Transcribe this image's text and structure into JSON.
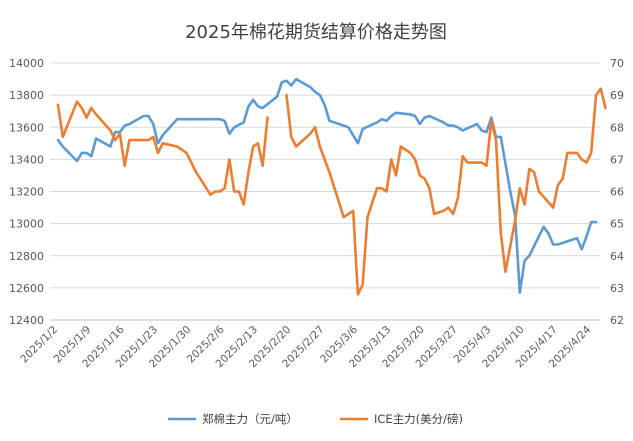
{
  "chart_data": {
    "type": "line",
    "title": "2025年棉花期货结算价格走势图",
    "xlabel": "",
    "ylabel": "",
    "y_left_range": [
      12400,
      14000
    ],
    "y_left_ticks": [
      "14000",
      "13800",
      "13600",
      "13400",
      "13200",
      "13000",
      "12800",
      "12600",
      "12400"
    ],
    "y_right_range": [
      62,
      70
    ],
    "y_right_ticks": [
      "70",
      "69",
      "68",
      "67",
      "66",
      "65",
      "64",
      "63",
      "62"
    ],
    "x_range_days": [
      "2025/1/2",
      "2025/4/25"
    ],
    "x_ticks": [
      "2025/1/2",
      "2025/1/9",
      "2025/1/16",
      "2025/1/23",
      "2025/1/30",
      "2025/2/6",
      "2025/2/13",
      "2025/2/20",
      "2025/2/27",
      "2025/3/6",
      "2025/3/13",
      "2025/3/20",
      "2025/3/27",
      "2025/4/3",
      "2025/4/10",
      "2025/4/17",
      "2025/4/24"
    ],
    "legend_position": "bottom",
    "gridlines": true,
    "series": [
      {
        "name": "郑棉主力（元/吨）",
        "axis": "left",
        "color": "#5b9bd5",
        "points": [
          [
            "2025/1/2",
            13520
          ],
          [
            "2025/1/3",
            13480
          ],
          [
            "2025/1/6",
            13390
          ],
          [
            "2025/1/7",
            13440
          ],
          [
            "2025/1/8",
            13440
          ],
          [
            "2025/1/9",
            13420
          ],
          [
            "2025/1/10",
            13530
          ],
          [
            "2025/1/13",
            13480
          ],
          [
            "2025/1/14",
            13570
          ],
          [
            "2025/1/15",
            13570
          ],
          [
            "2025/1/16",
            13610
          ],
          [
            "2025/1/17",
            13620
          ],
          [
            "2025/1/20",
            13670
          ],
          [
            "2025/1/21",
            13670
          ],
          [
            "2025/1/22",
            13620
          ],
          [
            "2025/1/23",
            13500
          ],
          [
            "2025/1/24",
            13550
          ],
          [
            "2025/1/27",
            13650
          ],
          [
            "2025/1/28",
            13650
          ],
          [
            "2025/2/5",
            13650
          ],
          [
            "2025/2/6",
            13640
          ],
          [
            "2025/2/7",
            13560
          ],
          [
            "2025/2/8",
            13600
          ],
          [
            "2025/2/10",
            13630
          ],
          [
            "2025/2/11",
            13730
          ],
          [
            "2025/2/12",
            13770
          ],
          [
            "2025/2/13",
            13730
          ],
          [
            "2025/2/14",
            13720
          ],
          [
            "2025/2/17",
            13790
          ],
          [
            "2025/2/18",
            13880
          ],
          [
            "2025/2/19",
            13890
          ],
          [
            "2025/2/20",
            13860
          ],
          [
            "2025/2/21",
            13900
          ],
          [
            "2025/2/24",
            13850
          ],
          [
            "2025/2/25",
            13820
          ],
          [
            "2025/2/26",
            13800
          ],
          [
            "2025/2/27",
            13740
          ],
          [
            "2025/2/28",
            13640
          ],
          [
            "2025/3/3",
            13610
          ],
          [
            "2025/3/4",
            13600
          ],
          [
            "2025/3/5",
            13550
          ],
          [
            "2025/3/6",
            13500
          ],
          [
            "2025/3/7",
            13590
          ],
          [
            "2025/3/10",
            13630
          ],
          [
            "2025/3/11",
            13650
          ],
          [
            "2025/3/12",
            13640
          ],
          [
            "2025/3/13",
            13670
          ],
          [
            "2025/3/14",
            13690
          ],
          [
            "2025/3/17",
            13680
          ],
          [
            "2025/3/18",
            13670
          ],
          [
            "2025/3/19",
            13620
          ],
          [
            "2025/3/20",
            13660
          ],
          [
            "2025/3/21",
            13670
          ],
          [
            "2025/3/24",
            13630
          ],
          [
            "2025/3/25",
            13610
          ],
          [
            "2025/3/26",
            13610
          ],
          [
            "2025/3/27",
            13600
          ],
          [
            "2025/3/28",
            13580
          ],
          [
            "2025/3/31",
            13620
          ],
          [
            "2025/4/1",
            13580
          ],
          [
            "2025/4/2",
            13570
          ],
          [
            "2025/4/3",
            13660
          ],
          [
            "2025/4/4",
            13540
          ],
          [
            "2025/4/5",
            13540
          ],
          [
            "2025/4/7",
            13200
          ],
          [
            "2025/4/8",
            13050
          ],
          [
            "2025/4/9",
            12570
          ],
          [
            "2025/4/10",
            12770
          ],
          [
            "2025/4/11",
            12800
          ],
          [
            "2025/4/14",
            12980
          ],
          [
            "2025/4/15",
            12940
          ],
          [
            "2025/4/16",
            12870
          ],
          [
            "2025/4/17",
            12870
          ],
          [
            "2025/4/18",
            12880
          ],
          [
            "2025/4/21",
            12910
          ],
          [
            "2025/4/22",
            12840
          ],
          [
            "2025/4/23",
            12920
          ],
          [
            "2025/4/24",
            13010
          ],
          [
            "2025/4/25",
            13010
          ]
        ]
      },
      {
        "name": "ICE主力(美分/磅)",
        "axis": "right",
        "color": "#ed7d31",
        "segments": [
          [
            [
              "2025/1/2",
              68.7
            ],
            [
              "2025/1/3",
              67.7
            ],
            [
              "2025/1/6",
              68.8
            ],
            [
              "2025/1/7",
              68.6
            ],
            [
              "2025/1/8",
              68.3
            ],
            [
              "2025/1/9",
              68.6
            ],
            [
              "2025/1/10",
              68.4
            ],
            [
              "2025/1/13",
              67.9
            ],
            [
              "2025/1/14",
              67.6
            ],
            [
              "2025/1/15",
              67.8
            ],
            [
              "2025/1/16",
              66.8
            ],
            [
              "2025/1/17",
              67.6
            ],
            [
              "2025/1/20",
              67.6
            ],
            [
              "2025/1/21",
              67.6
            ],
            [
              "2025/1/22",
              67.7
            ],
            [
              "2025/1/23",
              67.2
            ],
            [
              "2025/1/24",
              67.5
            ],
            [
              "2025/1/27",
              67.4
            ],
            [
              "2025/1/28",
              67.3
            ],
            [
              "2025/1/29",
              67.2
            ],
            [
              "2025/1/31",
              66.6
            ],
            [
              "2025/2/3",
              65.9
            ],
            [
              "2025/2/4",
              66.0
            ],
            [
              "2025/2/5",
              66.0
            ],
            [
              "2025/2/6",
              66.1
            ],
            [
              "2025/2/7",
              67.0
            ],
            [
              "2025/2/8",
              66.0
            ],
            [
              "2025/2/9",
              66.0
            ],
            [
              "2025/2/10",
              65.6
            ],
            [
              "2025/2/11",
              66.6
            ],
            [
              "2025/2/12",
              67.4
            ],
            [
              "2025/2/13",
              67.5
            ],
            [
              "2025/2/14",
              66.8
            ],
            [
              "2025/2/15",
              68.3
            ]
          ],
          [
            [
              "2025/2/19",
              69.0
            ],
            [
              "2025/2/20",
              67.7
            ],
            [
              "2025/2/21",
              67.4
            ],
            [
              "2025/2/24",
              67.8
            ],
            [
              "2025/2/25",
              68.0
            ],
            [
              "2025/2/26",
              67.4
            ],
            [
              "2025/2/27",
              67.0
            ],
            [
              "2025/2/28",
              66.6
            ],
            [
              "2025/3/3",
              65.2
            ],
            [
              "2025/3/4",
              65.3
            ],
            [
              "2025/3/5",
              65.4
            ],
            [
              "2025/3/6",
              62.8
            ],
            [
              "2025/3/7",
              63.1
            ],
            [
              "2025/3/8",
              65.2
            ],
            [
              "2025/3/10",
              66.1
            ],
            [
              "2025/3/11",
              66.1
            ],
            [
              "2025/3/12",
              66.0
            ],
            [
              "2025/3/13",
              67.0
            ],
            [
              "2025/3/14",
              66.5
            ],
            [
              "2025/3/15",
              67.4
            ],
            [
              "2025/3/17",
              67.2
            ],
            [
              "2025/3/18",
              67.0
            ],
            [
              "2025/3/19",
              66.5
            ],
            [
              "2025/3/20",
              66.4
            ],
            [
              "2025/3/21",
              66.1
            ],
            [
              "2025/3/22",
              65.3
            ],
            [
              "2025/3/24",
              65.4
            ],
            [
              "2025/3/25",
              65.5
            ],
            [
              "2025/3/26",
              65.3
            ],
            [
              "2025/3/27",
              65.8
            ],
            [
              "2025/3/28",
              67.1
            ],
            [
              "2025/3/29",
              66.9
            ],
            [
              "2025/4/1",
              66.9
            ],
            [
              "2025/4/2",
              66.8
            ],
            [
              "2025/4/3",
              68.2
            ],
            [
              "2025/4/4",
              67.6
            ],
            [
              "2025/4/5",
              64.7
            ],
            [
              "2025/4/6",
              63.5
            ],
            [
              "2025/4/8",
              65.1
            ],
            [
              "2025/4/9",
              66.1
            ],
            [
              "2025/4/10",
              65.6
            ],
            [
              "2025/4/11",
              66.7
            ],
            [
              "2025/4/12",
              66.6
            ],
            [
              "2025/4/13",
              66.0
            ],
            [
              "2025/4/16",
              65.5
            ],
            [
              "2025/4/17",
              66.2
            ],
            [
              "2025/4/18",
              66.4
            ],
            [
              "2025/4/19",
              67.2
            ],
            [
              "2025/4/21",
              67.2
            ],
            [
              "2025/4/22",
              67.0
            ],
            [
              "2025/4/23",
              66.9
            ],
            [
              "2025/4/24",
              67.2
            ],
            [
              "2025/4/25",
              69.0
            ],
            [
              "2025/4/26",
              69.2
            ],
            [
              "2025/4/27",
              68.6
            ]
          ]
        ]
      }
    ]
  }
}
